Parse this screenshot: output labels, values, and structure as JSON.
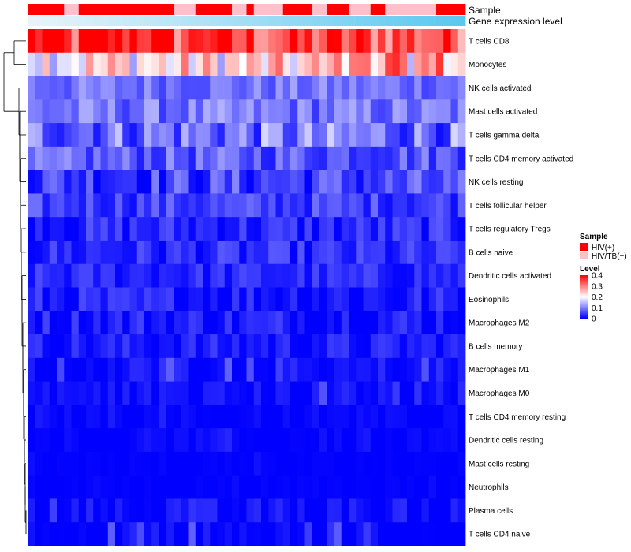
{
  "chart_data": {
    "type": "heatmap",
    "n_samples": 60,
    "top_annotation": {
      "sample_label": "Sample",
      "gene_label": "Gene expression level",
      "sample_pattern": "HHHHHLLHHHHHHHHHHHHHLLLHHHHHLLHLLLLHHHHLLHHHLLLHHLLLLLLLHHHH"
    },
    "rows": [
      {
        "label": "T cells CD8",
        "base": 0.34,
        "amp": 0.09
      },
      {
        "label": "Monocytes",
        "base": 0.22,
        "amp": 0.1
      },
      {
        "label": "NK cells activated",
        "base": 0.09,
        "amp": 0.04
      },
      {
        "label": "Mast cells activated",
        "base": 0.09,
        "amp": 0.05
      },
      {
        "label": "T cells gamma delta",
        "base": 0.09,
        "amp": 0.08
      },
      {
        "label": "T cells CD4 memory activated",
        "base": 0.07,
        "amp": 0.05
      },
      {
        "label": "NK cells resting",
        "base": 0.05,
        "amp": 0.06
      },
      {
        "label": "T cells follicular helper",
        "base": 0.05,
        "amp": 0.04
      },
      {
        "label": "T cells regulatory  Tregs",
        "base": 0.03,
        "amp": 0.04
      },
      {
        "label": "B cells naive",
        "base": 0.03,
        "amp": 0.04
      },
      {
        "label": "Dendritic cells activated",
        "base": 0.03,
        "amp": 0.03
      },
      {
        "label": "Eosinophils",
        "base": 0.02,
        "amp": 0.04
      },
      {
        "label": "Macrophages M2",
        "base": 0.02,
        "amp": 0.04
      },
      {
        "label": "B cells memory",
        "base": 0.02,
        "amp": 0.03
      },
      {
        "label": "Macrophages M1",
        "base": 0.01,
        "amp": 0.03
      },
      {
        "label": "Macrophages M0",
        "base": 0.01,
        "amp": 0.02
      },
      {
        "label": "T cells CD4 memory resting",
        "base": 0.0,
        "amp": 0.015
      },
      {
        "label": "Dendritic cells resting",
        "base": 0.0,
        "amp": 0.015
      },
      {
        "label": "Mast cells resting",
        "base": 0.0,
        "amp": 0.005
      },
      {
        "label": "Neutrophils",
        "base": 0.0,
        "amp": 0.005
      },
      {
        "label": "Plasma cells",
        "base": 0.005,
        "amp": 0.03
      },
      {
        "label": "T cells CD4 naive",
        "base": 0.0,
        "amp": 0.03
      }
    ],
    "legend_sample": {
      "title": "Sample",
      "items": [
        {
          "label": "HIV(+)",
          "color": "#ff0000"
        },
        {
          "label": "HIV/TB(+)",
          "color": "#ffc0cb"
        }
      ]
    },
    "legend_level": {
      "title": "Level",
      "ticks": [
        "0.4",
        "0.3",
        "0.2",
        "0.1",
        "0"
      ],
      "tick_values": [
        0.4,
        0.3,
        0.2,
        0.1,
        0.0
      ],
      "range": [
        0,
        0.4
      ]
    },
    "colors": {
      "low": "#0000ff",
      "mid": "#ffffff",
      "high": "#ff0000",
      "gene_bar": "#5bc8f0",
      "hiv": "#ff0000",
      "hivtb": "#ffc0cb"
    }
  }
}
